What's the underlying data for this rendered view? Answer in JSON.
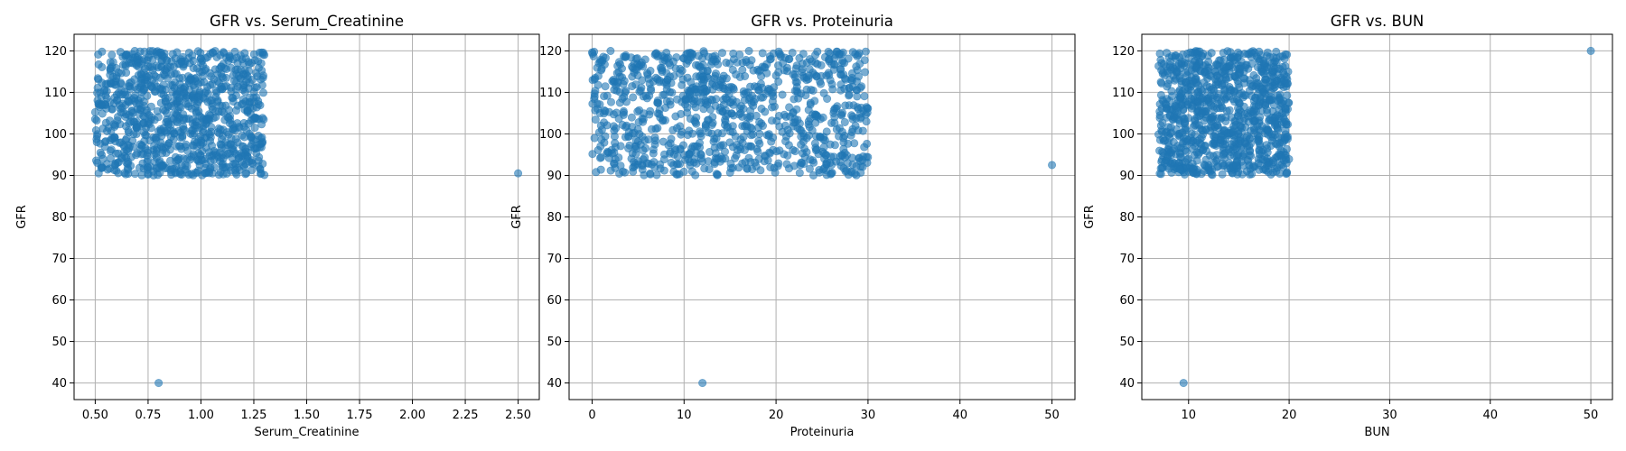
{
  "chart_data": [
    {
      "type": "scatter",
      "title": "GFR vs. Serum_Creatinine",
      "xlabel": "Serum_Creatinine",
      "ylabel": "GFR",
      "xlim": [
        0.4,
        2.6
      ],
      "ylim": [
        36,
        124
      ],
      "xticks": [
        0.5,
        0.75,
        1.0,
        1.25,
        1.5,
        1.75,
        2.0,
        2.25,
        2.5
      ],
      "xtick_labels": [
        "0.50",
        "0.75",
        "1.00",
        "1.25",
        "1.50",
        "1.75",
        "2.00",
        "2.25",
        "2.50"
      ],
      "yticks": [
        40,
        50,
        60,
        70,
        80,
        90,
        100,
        110,
        120
      ],
      "ytick_labels": [
        "40",
        "50",
        "60",
        "70",
        "80",
        "90",
        "100",
        "110",
        "120"
      ],
      "grid": true,
      "point_color": "#1f77b4",
      "bulk_cluster": {
        "x_range": [
          0.5,
          1.3
        ],
        "y_range": [
          90,
          120
        ],
        "approx_points": 1000
      },
      "outliers": [
        {
          "x": 2.5,
          "y": 90.5
        },
        {
          "x": 0.8,
          "y": 40
        }
      ]
    },
    {
      "type": "scatter",
      "title": "GFR vs. Proteinuria",
      "xlabel": "Proteinuria",
      "ylabel": "GFR",
      "xlim": [
        -2.5,
        52.5
      ],
      "ylim": [
        36,
        124
      ],
      "xticks": [
        0,
        10,
        20,
        30,
        40,
        50
      ],
      "xtick_labels": [
        "0",
        "10",
        "20",
        "30",
        "40",
        "50"
      ],
      "yticks": [
        40,
        50,
        60,
        70,
        80,
        90,
        100,
        110,
        120
      ],
      "ytick_labels": [
        "40",
        "50",
        "60",
        "70",
        "80",
        "90",
        "100",
        "110",
        "120"
      ],
      "grid": true,
      "point_color": "#1f77b4",
      "bulk_cluster": {
        "x_range": [
          0,
          30
        ],
        "y_range": [
          90,
          120
        ],
        "approx_points": 1000
      },
      "outliers": [
        {
          "x": 50,
          "y": 92.5
        },
        {
          "x": 12,
          "y": 40
        }
      ]
    },
    {
      "type": "scatter",
      "title": "GFR vs. BUN",
      "xlabel": "BUN",
      "ylabel": "GFR",
      "xlim": [
        5.35,
        52.15
      ],
      "ylim": [
        36,
        124
      ],
      "xticks": [
        10,
        20,
        30,
        40,
        50
      ],
      "xtick_labels": [
        "10",
        "20",
        "30",
        "40",
        "50"
      ],
      "yticks": [
        40,
        50,
        60,
        70,
        80,
        90,
        100,
        110,
        120
      ],
      "ytick_labels": [
        "40",
        "50",
        "60",
        "70",
        "80",
        "90",
        "100",
        "110",
        "120"
      ],
      "grid": true,
      "point_color": "#1f77b4",
      "bulk_cluster": {
        "x_range": [
          7,
          20
        ],
        "y_range": [
          90,
          120
        ],
        "approx_points": 1000
      },
      "outliers": [
        {
          "x": 50,
          "y": 120
        },
        {
          "x": 9.5,
          "y": 40
        }
      ]
    }
  ]
}
